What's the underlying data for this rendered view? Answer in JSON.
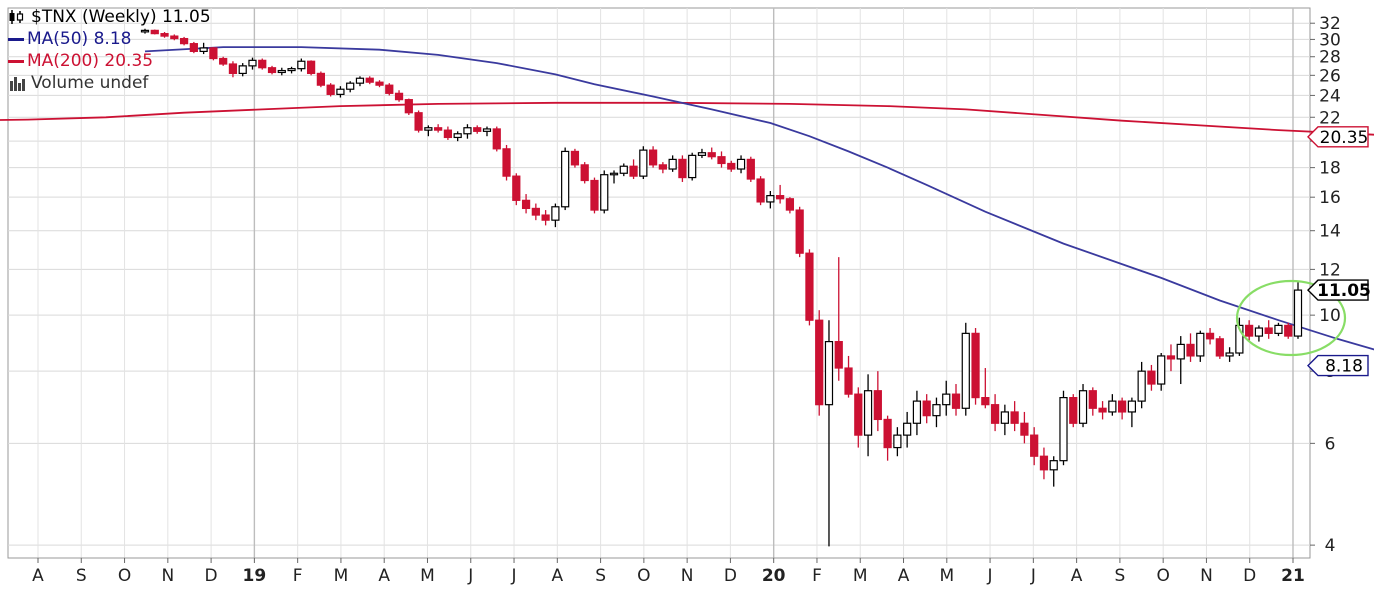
{
  "chart_data": {
    "type": "candlestick",
    "symbol": "$TNX",
    "period": "Weekly",
    "last_value": 11.05,
    "title": "$TNX (Weekly) 11.05",
    "y_scale": "log",
    "ylim": [
      3.8,
      34
    ],
    "y_ticks": [
      4,
      6,
      8,
      10,
      12,
      14,
      16,
      18,
      20,
      22,
      24,
      26,
      28,
      30,
      32
    ],
    "x_ticks": [
      {
        "label": "A",
        "year_start": false
      },
      {
        "label": "S",
        "year_start": false
      },
      {
        "label": "O",
        "year_start": false
      },
      {
        "label": "N",
        "year_start": false
      },
      {
        "label": "D",
        "year_start": false
      },
      {
        "label": "19",
        "year_start": true
      },
      {
        "label": "F",
        "year_start": false
      },
      {
        "label": "M",
        "year_start": false
      },
      {
        "label": "A",
        "year_start": false
      },
      {
        "label": "M",
        "year_start": false
      },
      {
        "label": "J",
        "year_start": false
      },
      {
        "label": "J",
        "year_start": false
      },
      {
        "label": "A",
        "year_start": false
      },
      {
        "label": "S",
        "year_start": false
      },
      {
        "label": "O",
        "year_start": false
      },
      {
        "label": "N",
        "year_start": false
      },
      {
        "label": "D",
        "year_start": false
      },
      {
        "label": "20",
        "year_start": true
      },
      {
        "label": "F",
        "year_start": false
      },
      {
        "label": "M",
        "year_start": false
      },
      {
        "label": "A",
        "year_start": false
      },
      {
        "label": "M",
        "year_start": false
      },
      {
        "label": "J",
        "year_start": false
      },
      {
        "label": "J",
        "year_start": false
      },
      {
        "label": "A",
        "year_start": false
      },
      {
        "label": "S",
        "year_start": false
      },
      {
        "label": "O",
        "year_start": false
      },
      {
        "label": "N",
        "year_start": false
      },
      {
        "label": "D",
        "year_start": false
      },
      {
        "label": "21",
        "year_start": true
      }
    ],
    "legend": [
      {
        "key": "price",
        "text": "$TNX (Weekly) 11.05",
        "color": "#000000"
      },
      {
        "key": "ma50",
        "text": "MA(50) 8.18",
        "color": "#1a1a8c"
      },
      {
        "key": "ma200",
        "text": "MA(200) 20.35",
        "color": "#cc1133"
      },
      {
        "key": "volume",
        "text": "Volume undef",
        "color": "#444444"
      }
    ],
    "value_tags": [
      {
        "name": "ma200",
        "value": 20.35,
        "label": "20.35",
        "bold": false,
        "border": "#cc1133"
      },
      {
        "name": "price",
        "value": 11.05,
        "label": "11.05",
        "bold": true,
        "border": "#000000"
      },
      {
        "name": "ma50",
        "value": 8.18,
        "label": "8.18",
        "bold": false,
        "border": "#1a1a8c"
      }
    ],
    "candle_colors": {
      "up": "#000000",
      "down": "#cc1133"
    },
    "ma50_color": "#3a3a9e",
    "ma200_color": "#cc1133",
    "highlight_color": "#88dd66",
    "candles": [
      [
        31.0,
        31.3,
        30.7,
        31.1
      ],
      [
        31.1,
        31.2,
        30.6,
        30.7
      ],
      [
        30.7,
        30.9,
        30.2,
        30.4
      ],
      [
        30.4,
        30.6,
        29.9,
        30.1
      ],
      [
        30.1,
        30.3,
        29.3,
        29.5
      ],
      [
        29.5,
        29.7,
        28.4,
        28.6
      ],
      [
        28.6,
        29.6,
        28.3,
        29.0
      ],
      [
        29.0,
        29.1,
        27.6,
        27.8
      ],
      [
        27.8,
        28.0,
        27.0,
        27.2
      ],
      [
        27.2,
        27.5,
        25.8,
        26.2
      ],
      [
        26.2,
        27.3,
        25.9,
        27.0
      ],
      [
        27.0,
        27.9,
        26.6,
        27.6
      ],
      [
        27.6,
        27.8,
        26.6,
        26.8
      ],
      [
        26.8,
        27.0,
        26.1,
        26.3
      ],
      [
        26.3,
        26.8,
        26.0,
        26.5
      ],
      [
        26.5,
        26.9,
        26.2,
        26.7
      ],
      [
        26.7,
        27.8,
        26.4,
        27.5
      ],
      [
        27.5,
        27.6,
        26.0,
        26.2
      ],
      [
        26.2,
        26.4,
        24.8,
        25.0
      ],
      [
        25.0,
        25.2,
        23.9,
        24.1
      ],
      [
        24.1,
        24.9,
        23.8,
        24.6
      ],
      [
        24.6,
        25.4,
        24.3,
        25.2
      ],
      [
        25.2,
        25.9,
        24.9,
        25.7
      ],
      [
        25.7,
        25.9,
        25.1,
        25.3
      ],
      [
        25.3,
        25.5,
        24.8,
        25.0
      ],
      [
        25.0,
        25.2,
        24.0,
        24.2
      ],
      [
        24.2,
        24.5,
        23.4,
        23.6
      ],
      [
        23.6,
        23.7,
        22.2,
        22.4
      ],
      [
        22.4,
        22.6,
        20.7,
        20.9
      ],
      [
        20.9,
        21.3,
        20.4,
        21.1
      ],
      [
        21.1,
        21.4,
        20.7,
        20.9
      ],
      [
        20.9,
        21.2,
        20.1,
        20.3
      ],
      [
        20.3,
        20.8,
        20.0,
        20.6
      ],
      [
        20.6,
        21.4,
        20.2,
        21.1
      ],
      [
        21.1,
        21.3,
        20.6,
        20.8
      ],
      [
        20.8,
        21.2,
        20.4,
        21.0
      ],
      [
        21.0,
        21.2,
        19.2,
        19.4
      ],
      [
        19.4,
        19.7,
        17.1,
        17.4
      ],
      [
        17.4,
        17.6,
        15.5,
        15.8
      ],
      [
        15.8,
        16.2,
        15.0,
        15.3
      ],
      [
        15.3,
        15.6,
        14.6,
        14.9
      ],
      [
        14.9,
        15.2,
        14.3,
        14.6
      ],
      [
        14.6,
        15.6,
        14.2,
        15.4
      ],
      [
        15.4,
        19.5,
        15.2,
        19.2
      ],
      [
        19.2,
        19.4,
        18.0,
        18.2
      ],
      [
        18.2,
        18.4,
        16.9,
        17.1
      ],
      [
        17.1,
        17.3,
        15.0,
        15.2
      ],
      [
        15.2,
        17.8,
        15.0,
        17.5
      ],
      [
        17.5,
        17.8,
        16.9,
        17.6
      ],
      [
        17.6,
        18.3,
        17.4,
        18.1
      ],
      [
        18.1,
        18.6,
        17.2,
        17.4
      ],
      [
        17.4,
        19.6,
        17.2,
        19.3
      ],
      [
        19.3,
        19.6,
        18.0,
        18.2
      ],
      [
        18.2,
        18.4,
        17.6,
        17.9
      ],
      [
        17.9,
        18.9,
        17.7,
        18.6
      ],
      [
        18.6,
        18.9,
        17.0,
        17.3
      ],
      [
        17.3,
        19.1,
        17.1,
        18.9
      ],
      [
        18.9,
        19.4,
        18.7,
        19.1
      ],
      [
        19.1,
        19.5,
        18.6,
        18.8
      ],
      [
        18.8,
        19.2,
        18.0,
        18.3
      ],
      [
        18.3,
        18.5,
        17.7,
        17.9
      ],
      [
        17.9,
        18.9,
        17.6,
        18.6
      ],
      [
        18.6,
        18.8,
        17.0,
        17.2
      ],
      [
        17.2,
        17.4,
        15.5,
        15.7
      ],
      [
        15.7,
        16.4,
        15.3,
        16.1
      ],
      [
        16.1,
        16.8,
        15.6,
        15.9
      ],
      [
        15.9,
        16.0,
        15.0,
        15.2
      ],
      [
        15.2,
        15.4,
        12.6,
        12.8
      ],
      [
        12.8,
        13.0,
        9.6,
        9.8
      ],
      [
        9.8,
        10.2,
        6.7,
        7.0
      ],
      [
        7.0,
        9.8,
        3.98,
        9.0
      ],
      [
        9.0,
        12.6,
        7.7,
        8.1
      ],
      [
        8.1,
        8.5,
        7.2,
        7.3
      ],
      [
        7.3,
        7.5,
        5.9,
        6.2
      ],
      [
        6.2,
        7.9,
        5.7,
        7.4
      ],
      [
        7.4,
        8.0,
        6.3,
        6.6
      ],
      [
        6.6,
        6.7,
        5.6,
        5.9
      ],
      [
        5.9,
        6.4,
        5.7,
        6.2
      ],
      [
        6.2,
        6.8,
        5.9,
        6.5
      ],
      [
        6.5,
        7.4,
        6.2,
        7.1
      ],
      [
        7.1,
        7.3,
        6.5,
        6.7
      ],
      [
        6.7,
        7.2,
        6.4,
        7.0
      ],
      [
        7.0,
        7.7,
        6.7,
        7.3
      ],
      [
        7.3,
        7.6,
        6.7,
        6.9
      ],
      [
        6.9,
        9.7,
        6.7,
        9.3
      ],
      [
        9.3,
        9.5,
        7.0,
        7.2
      ],
      [
        7.2,
        8.1,
        6.9,
        7.0
      ],
      [
        7.0,
        7.3,
        6.3,
        6.5
      ],
      [
        6.5,
        7.0,
        6.2,
        6.8
      ],
      [
        6.8,
        7.1,
        6.3,
        6.5
      ],
      [
        6.5,
        6.8,
        6.0,
        6.2
      ],
      [
        6.2,
        6.4,
        5.5,
        5.7
      ],
      [
        5.7,
        5.9,
        5.2,
        5.4
      ],
      [
        5.4,
        5.7,
        5.05,
        5.6
      ],
      [
        5.6,
        7.4,
        5.5,
        7.2
      ],
      [
        7.2,
        7.3,
        6.4,
        6.5
      ],
      [
        6.5,
        7.6,
        6.4,
        7.4
      ],
      [
        7.4,
        7.5,
        6.7,
        6.9
      ],
      [
        6.9,
        7.1,
        6.6,
        6.8
      ],
      [
        6.8,
        7.3,
        6.7,
        7.1
      ],
      [
        7.1,
        7.2,
        6.6,
        6.8
      ],
      [
        6.8,
        7.2,
        6.4,
        7.1
      ],
      [
        7.1,
        8.3,
        6.9,
        8.0
      ],
      [
        8.0,
        8.2,
        7.4,
        7.6
      ],
      [
        7.6,
        8.6,
        7.4,
        8.5
      ],
      [
        8.5,
        8.9,
        8.0,
        8.4
      ],
      [
        8.4,
        9.2,
        7.6,
        8.9
      ],
      [
        8.9,
        9.3,
        8.3,
        8.5
      ],
      [
        8.5,
        9.4,
        8.3,
        9.3
      ],
      [
        9.3,
        9.5,
        8.9,
        9.1
      ],
      [
        9.1,
        9.2,
        8.4,
        8.5
      ],
      [
        8.5,
        8.8,
        8.3,
        8.6
      ],
      [
        8.6,
        9.9,
        8.5,
        9.6
      ],
      [
        9.6,
        9.8,
        9.0,
        9.2
      ],
      [
        9.2,
        9.6,
        9.0,
        9.5
      ],
      [
        9.5,
        9.8,
        9.1,
        9.3
      ],
      [
        9.3,
        9.7,
        9.2,
        9.6
      ],
      [
        9.6,
        9.7,
        9.1,
        9.2
      ],
      [
        9.2,
        11.4,
        9.1,
        11.05
      ]
    ],
    "ma50": [
      [
        0,
        28.6
      ],
      [
        8,
        29.1
      ],
      [
        16,
        29.1
      ],
      [
        24,
        28.8
      ],
      [
        30,
        28.2
      ],
      [
        36,
        27.3
      ],
      [
        42,
        26.1
      ],
      [
        46,
        25.1
      ],
      [
        52,
        23.9
      ],
      [
        58,
        22.7
      ],
      [
        64,
        21.5
      ],
      [
        68,
        20.4
      ],
      [
        72,
        19.2
      ],
      [
        76,
        18.0
      ],
      [
        80,
        16.8
      ],
      [
        86,
        15.1
      ],
      [
        94,
        13.3
      ],
      [
        104,
        11.6
      ],
      [
        110,
        10.6
      ],
      [
        116,
        9.8
      ],
      [
        122,
        9.1
      ],
      [
        126,
        8.7
      ],
      [
        128,
        8.45
      ],
      [
        130,
        8.18
      ]
    ],
    "ma200": [
      [
        -20,
        21.7
      ],
      [
        -12,
        21.8
      ],
      [
        -4,
        22.0
      ],
      [
        4,
        22.4
      ],
      [
        12,
        22.7
      ],
      [
        20,
        23.0
      ],
      [
        30,
        23.2
      ],
      [
        42,
        23.3
      ],
      [
        54,
        23.3
      ],
      [
        66,
        23.2
      ],
      [
        76,
        23.0
      ],
      [
        84,
        22.7
      ],
      [
        92,
        22.2
      ],
      [
        100,
        21.7
      ],
      [
        108,
        21.3
      ],
      [
        116,
        20.9
      ],
      [
        124,
        20.6
      ],
      [
        130,
        20.35
      ]
    ]
  }
}
